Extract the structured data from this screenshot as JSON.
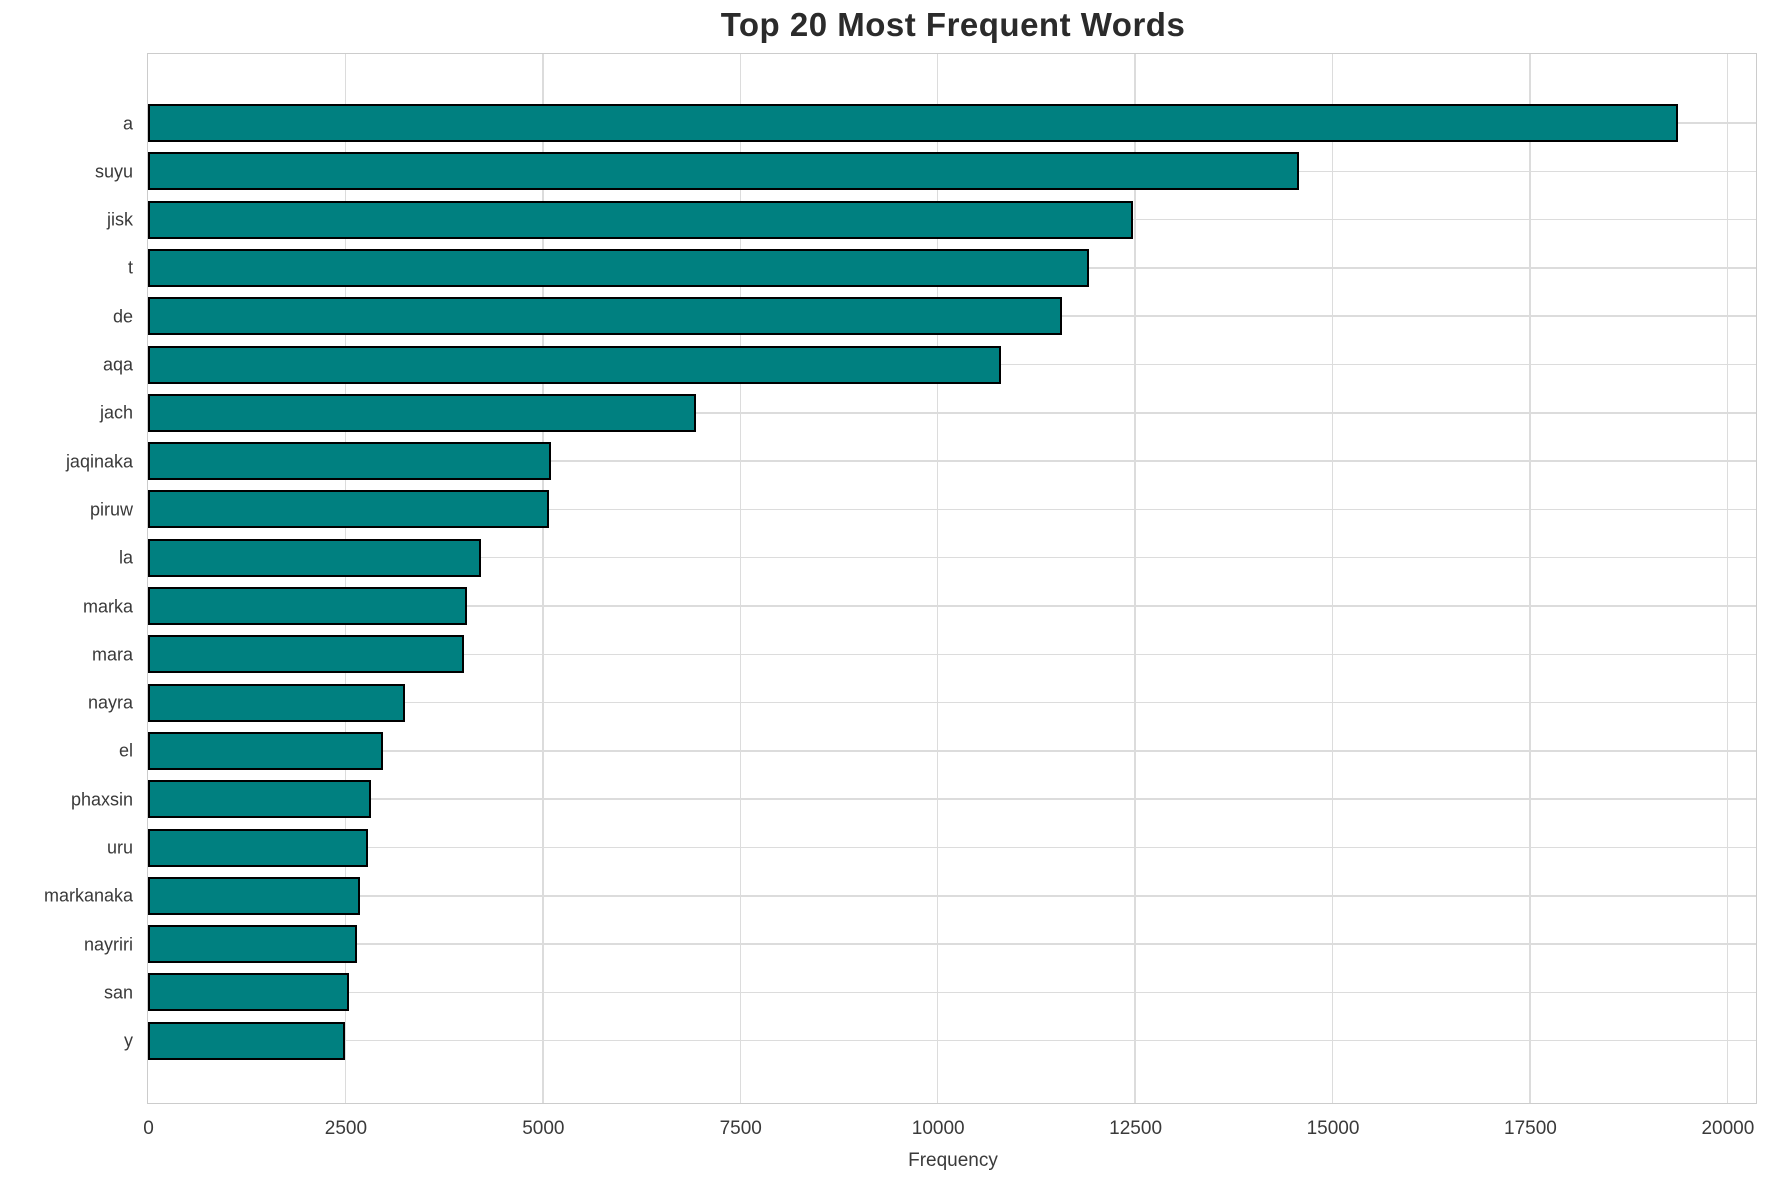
{
  "chart_data": {
    "type": "bar",
    "orientation": "horizontal",
    "title": "Top 20 Most Frequent Words",
    "xlabel": "Frequency",
    "ylabel": "",
    "categories": [
      "a",
      "suyu",
      "jisk",
      "t",
      "de",
      "aqa",
      "jach",
      "jaqinaka",
      "piruw",
      "la",
      "marka",
      "mara",
      "nayra",
      "el",
      "phaxsin",
      "uru",
      "markanaka",
      "nayriri",
      "san",
      "y"
    ],
    "values": [
      19380,
      14580,
      12470,
      11910,
      11580,
      10800,
      6940,
      5100,
      5080,
      4220,
      4040,
      4000,
      3250,
      2970,
      2820,
      2790,
      2680,
      2650,
      2540,
      2500
    ],
    "xticks": [
      0,
      2500,
      5000,
      7500,
      10000,
      12500,
      15000,
      17500,
      20000
    ],
    "xtick_labels": [
      "0",
      "2500",
      "5000",
      "7500",
      "10000",
      "12500",
      "15000",
      "17500",
      "20000"
    ],
    "xlim": [
      0,
      20350
    ],
    "grid": true,
    "legend": false,
    "colors": {
      "bar_fill": "#008080",
      "bar_edge": "#000000",
      "grid_line": "#dcdcdc",
      "spine": "#cccccc",
      "title_text": "#2b2b2b",
      "tick_text": "#3a3a3a",
      "background": "#ffffff"
    }
  }
}
